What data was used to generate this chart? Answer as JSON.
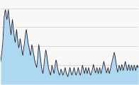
{
  "y_values": [
    0.3,
    0.38,
    0.45,
    0.55,
    0.72,
    0.88,
    0.95,
    0.98,
    0.9,
    0.85,
    0.92,
    0.98,
    0.88,
    0.8,
    0.72,
    0.65,
    0.78,
    0.85,
    0.75,
    0.68,
    0.6,
    0.55,
    0.65,
    0.72,
    0.62,
    0.55,
    0.48,
    0.52,
    0.6,
    0.55,
    0.5,
    0.42,
    0.38,
    0.45,
    0.52,
    0.6,
    0.68,
    0.72,
    0.65,
    0.58,
    0.52,
    0.48,
    0.42,
    0.38,
    0.45,
    0.52,
    0.48,
    0.42,
    0.38,
    0.32,
    0.28,
    0.25,
    0.22,
    0.3,
    0.42,
    0.52,
    0.45,
    0.38,
    0.3,
    0.22,
    0.18,
    0.14,
    0.2,
    0.3,
    0.38,
    0.45,
    0.42,
    0.35,
    0.28,
    0.22,
    0.18,
    0.15,
    0.12,
    0.18,
    0.25,
    0.22,
    0.18,
    0.14,
    0.2,
    0.28,
    0.32,
    0.28,
    0.22,
    0.18,
    0.14,
    0.12,
    0.15,
    0.2,
    0.18,
    0.14,
    0.12,
    0.15,
    0.18,
    0.22,
    0.18,
    0.14,
    0.12,
    0.1,
    0.14,
    0.18,
    0.22,
    0.18,
    0.14,
    0.12,
    0.15,
    0.18,
    0.22,
    0.18,
    0.14,
    0.12,
    0.15,
    0.18,
    0.22,
    0.18,
    0.14,
    0.12,
    0.15,
    0.2,
    0.25,
    0.22,
    0.18,
    0.14,
    0.18,
    0.22,
    0.18,
    0.14,
    0.18,
    0.22,
    0.18,
    0.14,
    0.12,
    0.15,
    0.18,
    0.22,
    0.26,
    0.22,
    0.18,
    0.15,
    0.18,
    0.22,
    0.18,
    0.14,
    0.18,
    0.22,
    0.18,
    0.14,
    0.18,
    0.22,
    0.26,
    0.3,
    0.26,
    0.22,
    0.18,
    0.15,
    0.18,
    0.22,
    0.18,
    0.14,
    0.18,
    0.22,
    0.26,
    0.3,
    0.34,
    0.38,
    0.42,
    0.38,
    0.32,
    0.26,
    0.2,
    0.16,
    0.2,
    0.25,
    0.22,
    0.18,
    0.22,
    0.26,
    0.22,
    0.18,
    0.22,
    0.26,
    0.3,
    0.26,
    0.22,
    0.18,
    0.22,
    0.26,
    0.22,
    0.18,
    0.22,
    0.25,
    0.22,
    0.18,
    0.22,
    0.25,
    0.22,
    0.18,
    0.22,
    0.25,
    0.22,
    0.25
  ],
  "fill_color": "#add8f0",
  "line_color": "#1a1a2e",
  "background_color": "#f8f8f8",
  "grid_color": "#cccccc",
  "ylim": [
    0.0,
    1.1
  ],
  "line_width": 0.6,
  "fill_alpha": 1.0,
  "num_gridlines": 4
}
